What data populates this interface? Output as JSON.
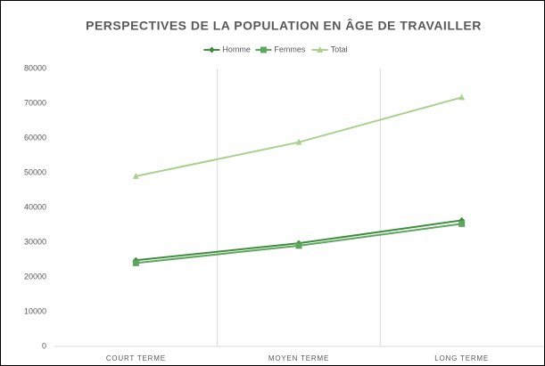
{
  "chart_data": {
    "type": "line",
    "title": "PERSPECTIVES DE LA POPULATION EN ÂGE DE TRAVAILLER",
    "categories": [
      "COURT TERME",
      "MOYEN TERME",
      "LONG TERME"
    ],
    "series": [
      {
        "name": "Homme",
        "color": "#3e8e3e",
        "marker": "diamond",
        "values": [
          24800,
          29700,
          36300
        ]
      },
      {
        "name": "Femmes",
        "color": "#5ea65e",
        "marker": "square",
        "values": [
          24000,
          29000,
          35300
        ]
      },
      {
        "name": "Total",
        "color": "#a9d18e",
        "marker": "triangle",
        "values": [
          49000,
          58800,
          71700
        ]
      }
    ],
    "ylim": [
      0,
      80000
    ],
    "yticks": [
      0,
      10000,
      20000,
      30000,
      40000,
      50000,
      60000,
      70000,
      80000
    ],
    "xgrid": true,
    "legend": "top"
  }
}
